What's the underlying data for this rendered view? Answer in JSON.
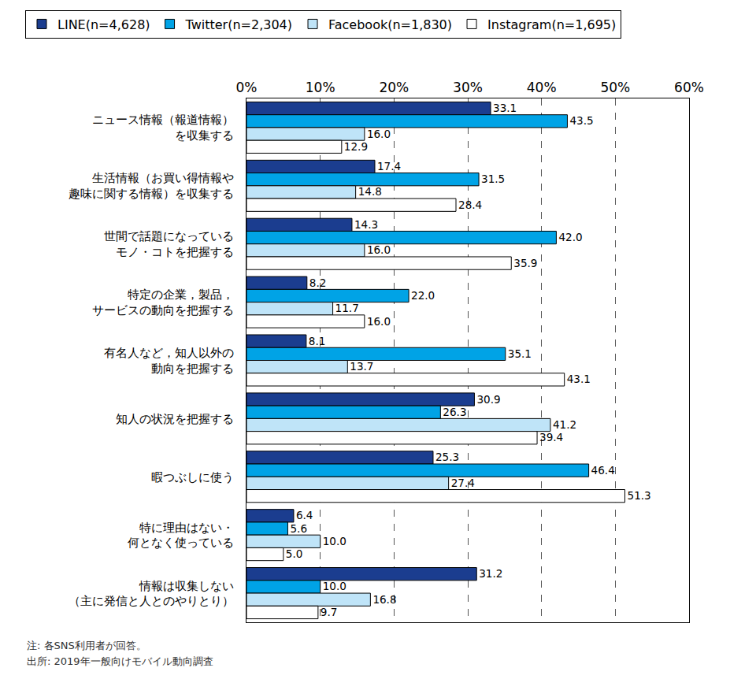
{
  "chart_data": {
    "type": "bar",
    "orientation": "horizontal",
    "categories": [
      "ニュース情報（報道情報）\nを収集する",
      "生活情報（お買い得情報や\n趣味に関する情報）を収集する",
      "世間で話題になっている\nモノ・コトを把握する",
      "特定の企業，製品，\nサービスの動向を把握する",
      "有名人など，知人以外の\n動向を把握する",
      "知人の状況を把握する",
      "暇つぶしに使う",
      "特に理由はない・\n何となく使っている",
      "情報は収集しない\n（主に発信と人とのやりとり）"
    ],
    "series": [
      {
        "name": "LINE(n=4,628)",
        "color": "#1b3d8f",
        "values": [
          33.1,
          17.4,
          14.3,
          8.2,
          8.1,
          30.9,
          25.3,
          6.4,
          31.2
        ]
      },
      {
        "name": "Twitter(n=2,304)",
        "color": "#00a3e6",
        "values": [
          43.5,
          31.5,
          42.0,
          22.0,
          35.1,
          26.3,
          46.4,
          5.6,
          10.0
        ],
        "value_labels": [
          "43.5",
          "31.5",
          "42.0",
          "22.0",
          "35.1",
          "26.3",
          "46.4",
          "5.6",
          "10.0"
        ]
      },
      {
        "name": "Facebook(n=1,830)",
        "color": "#bfe4f8",
        "values": [
          16.0,
          14.8,
          16.0,
          11.7,
          13.7,
          41.2,
          27.4,
          10.0,
          16.8
        ],
        "value_labels": [
          "16.0",
          "14.8",
          "16.0",
          "11.7",
          "13.7",
          "41.2",
          "27.4",
          "10.0",
          "16.8"
        ]
      },
      {
        "name": "Instagram(n=1,695)",
        "color": "#ffffff",
        "values": [
          12.9,
          28.4,
          35.9,
          16.0,
          43.1,
          39.4,
          51.3,
          5.0,
          9.7
        ],
        "value_labels": [
          "12.9",
          "28.4",
          "35.9",
          "16.0",
          "43.1",
          "39.4",
          "51.3",
          "5.0",
          "9.7"
        ]
      }
    ],
    "xlim": [
      0,
      60
    ],
    "xticks": [
      {
        "value": 0,
        "label": "0%"
      },
      {
        "value": 10,
        "label": "10%"
      },
      {
        "value": 20,
        "label": "20%"
      },
      {
        "value": 30,
        "label": "30%"
      },
      {
        "value": 40,
        "label": "40%"
      },
      {
        "value": 50,
        "label": "50%"
      },
      {
        "value": 60,
        "label": "60%"
      }
    ],
    "grid": true,
    "data_labels": true,
    "legend": "top",
    "annotations": [
      "注: 各SNS利用者が回答。",
      "出所: 2019年一般向けモバイル動向調査"
    ]
  }
}
